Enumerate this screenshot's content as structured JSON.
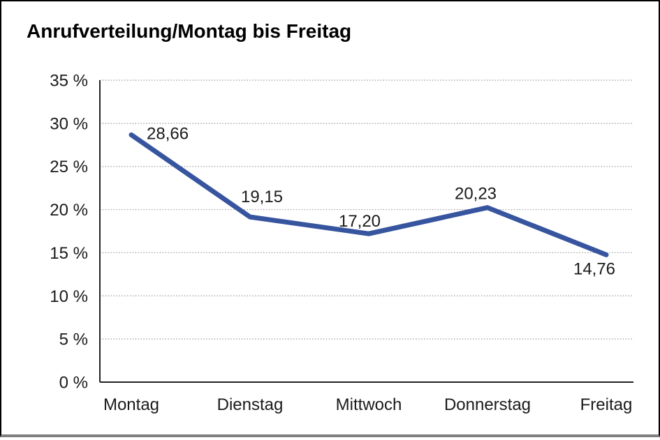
{
  "window": {
    "background": "#ffffff",
    "frame_border_color": "#000000",
    "frame_bottom_rule_color": "#808080"
  },
  "chart_data": {
    "type": "line",
    "title": "Anrufverteilung/Montag bis Freitag",
    "categories": [
      "Montag",
      "Dienstag",
      "Mittwoch",
      "Donnerstag",
      "Freitag"
    ],
    "series": [
      {
        "name": "Anrufverteilung",
        "values": [
          28.66,
          19.15,
          17.2,
          20.23,
          14.76
        ]
      }
    ],
    "point_labels": [
      "28,66",
      "19,15",
      "17,20",
      "20,23",
      "14,76"
    ],
    "yticks": [
      0,
      5,
      10,
      15,
      20,
      25,
      30,
      35
    ],
    "ytick_labels": [
      "0 %",
      "5 %",
      "10 %",
      "15 %",
      "20 %",
      "25 %",
      "30 %",
      "35 %"
    ],
    "ylim": [
      0,
      35
    ],
    "xlabel": "",
    "ylabel": "",
    "grid": "horizontal-dotted",
    "legend": "none",
    "colors": {
      "line": "#37559F",
      "axis": "#222222",
      "grid": "#8c8c8c",
      "labels": "#1a1a1a",
      "title": "#000000"
    }
  }
}
